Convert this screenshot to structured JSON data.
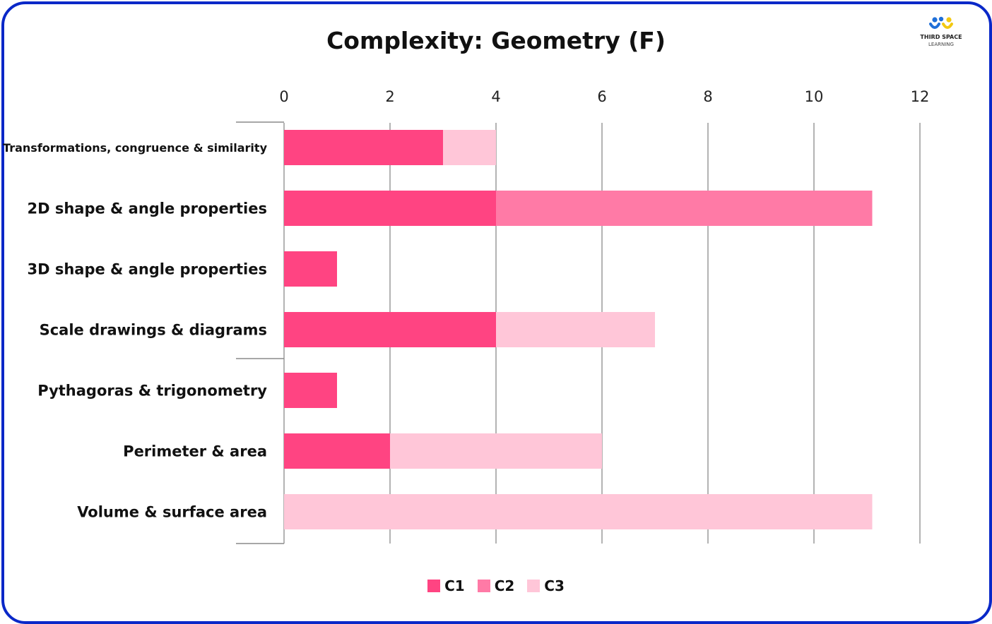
{
  "header": {
    "title": "Complexity: Geometry (F)"
  },
  "logo": {
    "line1": "THIRD SPACE",
    "line2": "LEARNING",
    "colors": {
      "blue": "#1f6fd8",
      "yellow": "#f2c811"
    }
  },
  "colors": {
    "frame": "#0a28c8",
    "C1": "#ff4482",
    "C2": "#ff7aa6",
    "C3": "#ffc6d8"
  },
  "chart_data": {
    "type": "bar",
    "orientation": "horizontal",
    "stacked": true,
    "title": "Complexity: Geometry (F)",
    "categories": [
      "Transformations, congruence & similarity",
      "2D shape & angle properties",
      "3D shape & angle properties",
      "Scale drawings & diagrams",
      "Pythagoras & trigonometry",
      "Perimeter & area",
      "Volume & surface area"
    ],
    "series": [
      {
        "name": "C1",
        "values": [
          3,
          4,
          1,
          4,
          1,
          2,
          0
        ]
      },
      {
        "name": "C2",
        "values": [
          0,
          7.1,
          0,
          0,
          0,
          0,
          0
        ]
      },
      {
        "name": "C3",
        "values": [
          1,
          0,
          0,
          3,
          0,
          4,
          11.1
        ]
      }
    ],
    "xlim": [
      0,
      12
    ],
    "xticks": [
      0,
      2,
      4,
      6,
      8,
      10,
      12
    ],
    "xaxis_position": "top",
    "grid": true,
    "legend": "bottom"
  }
}
